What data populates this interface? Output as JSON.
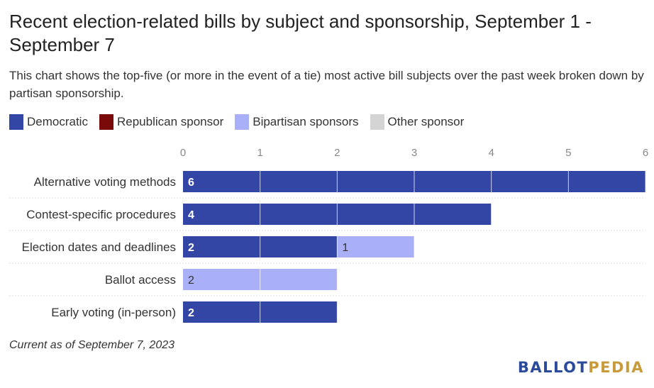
{
  "title": "Recent election-related bills by subject and sponsorship, September 1 - September 7",
  "subtitle": "This chart shows the top-five (or more in the event of a tie) most active bill subjects over the past week broken down by partisan sponsorship.",
  "legend": [
    {
      "label": "Democratic",
      "color": "#3346a6"
    },
    {
      "label": "Republican sponsor",
      "color": "#7a0a0a"
    },
    {
      "label": "Bipartisan sponsors",
      "color": "#aab0f7"
    },
    {
      "label": "Other sponsor",
      "color": "#d4d4d4"
    }
  ],
  "footnote": "Current as of September 7, 2023",
  "logo": {
    "part1": "BALLOT",
    "part2": "PEDIA"
  },
  "chart_data": {
    "type": "bar",
    "orientation": "horizontal",
    "stacked": true,
    "categories": [
      "Alternative voting methods",
      "Contest-specific procedures",
      "Election dates and deadlines",
      "Ballot access",
      "Early voting (in-person)"
    ],
    "series": [
      {
        "name": "Democratic",
        "color": "#3346a6",
        "values": [
          6,
          4,
          2,
          0,
          2
        ]
      },
      {
        "name": "Republican sponsor",
        "color": "#7a0a0a",
        "values": [
          0,
          0,
          0,
          0,
          0
        ]
      },
      {
        "name": "Bipartisan sponsors",
        "color": "#aab0f7",
        "values": [
          0,
          0,
          1,
          2,
          0
        ]
      },
      {
        "name": "Other sponsor",
        "color": "#d4d4d4",
        "values": [
          0,
          0,
          0,
          0,
          0
        ]
      }
    ],
    "xlim": [
      0,
      6
    ],
    "xticks": [
      0,
      1,
      2,
      3,
      4,
      5,
      6
    ],
    "axis_position": "top",
    "grid": true
  }
}
